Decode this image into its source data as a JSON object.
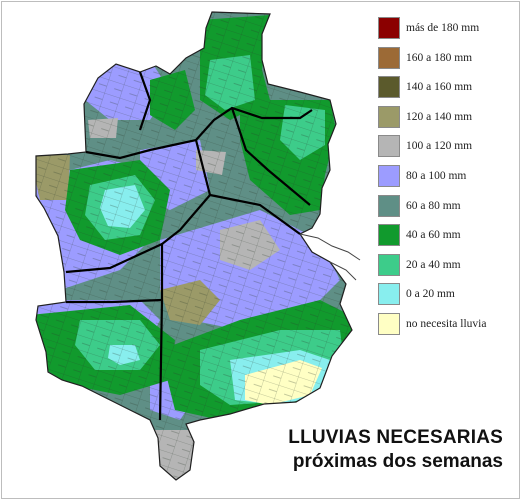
{
  "title": {
    "line1": "LLUVIAS NECESARIAS",
    "line2": "próximas dos semanas"
  },
  "legend": [
    {
      "label": "más de 180 mm",
      "color": "#8b0000"
    },
    {
      "label": "160 a 180 mm",
      "color": "#9c6a36"
    },
    {
      "label": "140 a 160 mm",
      "color": "#5b5a2c"
    },
    {
      "label": "120 a 140 mm",
      "color": "#9b9a68"
    },
    {
      "label": "100 a 120 mm",
      "color": "#b5b5b5"
    },
    {
      "label": "80 a 100 mm",
      "color": "#9c9cff"
    },
    {
      "label": "60 a 80 mm",
      "color": "#5f8f86"
    },
    {
      "label": "40 a 60 mm",
      "color": "#119a2d"
    },
    {
      "label": "20 a 40 mm",
      "color": "#3dcc8a"
    },
    {
      "label": "0 a 20 mm",
      "color": "#88eeee"
    },
    {
      "label": "no necesita lluvia",
      "color": "#ffffc4"
    }
  ]
}
